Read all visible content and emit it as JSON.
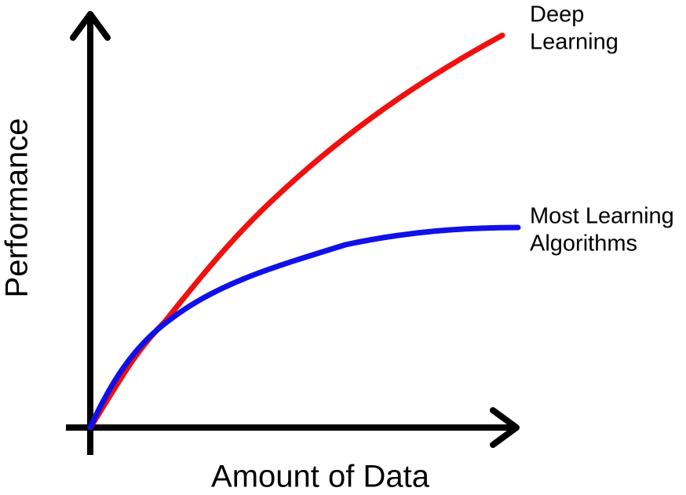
{
  "axes": {
    "y_label": "Performance",
    "x_label": "Amount of Data"
  },
  "curves": [
    {
      "label_lines": [
        "Deep",
        "Learning"
      ]
    },
    {
      "label_lines": [
        "Most Learning",
        "Algorithms"
      ]
    }
  ]
}
